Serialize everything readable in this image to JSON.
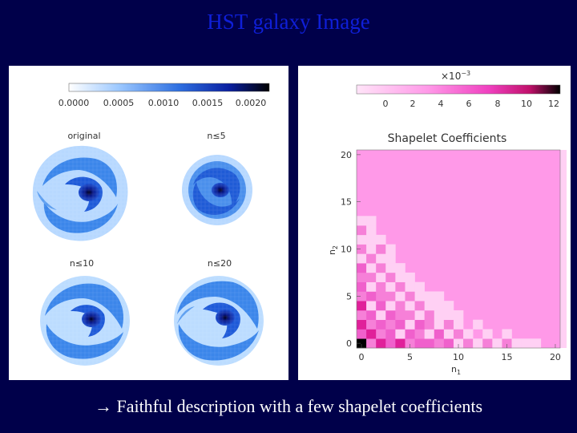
{
  "slide": {
    "title": "HST galaxy Image",
    "caption_arrow": "→",
    "caption": "Faithful description with a few shapelet coefficients"
  },
  "left_figure": {
    "colorbar_ticks": [
      "0.0000",
      "0.0005",
      "0.0010",
      "0.0015",
      "0.0020"
    ],
    "panels": [
      "original",
      "n≤5",
      "n≤10",
      "n≤20"
    ],
    "colors": {
      "low": "#dfeeff",
      "mid": "#3a82e6",
      "high": "#0a1a8a",
      "core": "#000022"
    }
  },
  "right_figure": {
    "multiplier": "×10",
    "multiplier_exp": "−3",
    "colorbar_ticks": [
      "0",
      "2",
      "4",
      "6",
      "8",
      "10",
      "12"
    ],
    "title": "Shapelet Coefficients",
    "xlabel": "n",
    "xlabel_sub": "1",
    "ylabel": "n",
    "ylabel_sub": "2",
    "x_ticks": [
      "0",
      "5",
      "10",
      "15",
      "20"
    ],
    "y_ticks": [
      "0",
      "5",
      "10",
      "15",
      "20"
    ],
    "colors": {
      "background": "#ff99e8",
      "light": "#ffd0f4",
      "mid": "#f060cc",
      "strong": "#e0209a",
      "peak": "#000000"
    }
  },
  "chart_data": {
    "type": "heatmap",
    "title": "Shapelet Coefficients",
    "xlabel": "n1",
    "ylabel": "n2",
    "xlim": [
      0,
      20
    ],
    "ylim": [
      0,
      20
    ],
    "color_scale": "×10^-3, 0 to 12",
    "cells": [
      [
        0,
        0,
        12
      ],
      [
        1,
        0,
        3
      ],
      [
        2,
        0,
        8
      ],
      [
        3,
        0,
        4
      ],
      [
        4,
        0,
        6
      ],
      [
        5,
        0,
        3
      ],
      [
        6,
        0,
        5
      ],
      [
        7,
        0,
        4
      ],
      [
        8,
        0,
        3
      ],
      [
        9,
        0,
        4
      ],
      [
        10,
        0,
        2
      ],
      [
        11,
        0,
        3
      ],
      [
        12,
        0,
        2
      ],
      [
        13,
        0,
        3
      ],
      [
        14,
        0,
        2
      ],
      [
        15,
        0,
        3
      ],
      [
        16,
        0,
        2
      ],
      [
        17,
        0,
        2
      ],
      [
        18,
        0,
        2
      ],
      [
        0,
        1,
        4
      ],
      [
        1,
        1,
        6
      ],
      [
        2,
        1,
        3
      ],
      [
        3,
        1,
        5
      ],
      [
        4,
        1,
        2
      ],
      [
        5,
        1,
        4
      ],
      [
        6,
        1,
        3
      ],
      [
        7,
        1,
        2
      ],
      [
        8,
        1,
        4
      ],
      [
        9,
        1,
        2
      ],
      [
        10,
        1,
        3
      ],
      [
        11,
        1,
        2
      ],
      [
        13,
        1,
        2
      ],
      [
        15,
        1,
        2
      ],
      [
        0,
        2,
        7
      ],
      [
        1,
        2,
        3
      ],
      [
        2,
        2,
        5
      ],
      [
        3,
        2,
        3
      ],
      [
        4,
        2,
        4
      ],
      [
        5,
        2,
        2
      ],
      [
        6,
        2,
        4
      ],
      [
        7,
        2,
        3
      ],
      [
        8,
        2,
        2
      ],
      [
        9,
        2,
        3
      ],
      [
        10,
        2,
        2
      ],
      [
        12,
        2,
        2
      ],
      [
        0,
        3,
        3
      ],
      [
        1,
        3,
        5
      ],
      [
        2,
        3,
        2
      ],
      [
        3,
        3,
        4
      ],
      [
        4,
        3,
        3
      ],
      [
        5,
        3,
        3
      ],
      [
        6,
        3,
        2
      ],
      [
        7,
        3,
        3
      ],
      [
        8,
        3,
        2
      ],
      [
        9,
        3,
        2
      ],
      [
        10,
        3,
        2
      ],
      [
        0,
        4,
        6
      ],
      [
        1,
        4,
        2
      ],
      [
        2,
        4,
        4
      ],
      [
        3,
        4,
        2
      ],
      [
        4,
        4,
        3
      ],
      [
        5,
        4,
        2
      ],
      [
        6,
        4,
        3
      ],
      [
        7,
        4,
        2
      ],
      [
        8,
        4,
        2
      ],
      [
        9,
        4,
        2
      ],
      [
        0,
        5,
        3
      ],
      [
        1,
        5,
        4
      ],
      [
        2,
        5,
        3
      ],
      [
        3,
        5,
        3
      ],
      [
        4,
        5,
        2
      ],
      [
        5,
        5,
        3
      ],
      [
        6,
        5,
        2
      ],
      [
        7,
        5,
        2
      ],
      [
        8,
        5,
        2
      ],
      [
        0,
        6,
        5
      ],
      [
        1,
        6,
        2
      ],
      [
        2,
        6,
        3
      ],
      [
        3,
        6,
        2
      ],
      [
        4,
        6,
        3
      ],
      [
        5,
        6,
        2
      ],
      [
        6,
        6,
        2
      ],
      [
        0,
        7,
        3
      ],
      [
        1,
        7,
        3
      ],
      [
        2,
        7,
        2
      ],
      [
        3,
        7,
        3
      ],
      [
        4,
        7,
        2
      ],
      [
        5,
        7,
        2
      ],
      [
        0,
        8,
        4
      ],
      [
        1,
        8,
        2
      ],
      [
        2,
        8,
        3
      ],
      [
        3,
        8,
        2
      ],
      [
        4,
        8,
        2
      ],
      [
        0,
        9,
        2
      ],
      [
        1,
        9,
        3
      ],
      [
        2,
        9,
        2
      ],
      [
        3,
        9,
        2
      ],
      [
        0,
        10,
        3
      ],
      [
        1,
        10,
        2
      ],
      [
        2,
        10,
        3
      ],
      [
        3,
        10,
        2
      ],
      [
        0,
        11,
        2
      ],
      [
        1,
        11,
        2
      ],
      [
        2,
        11,
        2
      ],
      [
        0,
        12,
        3
      ],
      [
        1,
        12,
        2
      ],
      [
        0,
        13,
        2
      ],
      [
        1,
        13,
        2
      ]
    ]
  }
}
